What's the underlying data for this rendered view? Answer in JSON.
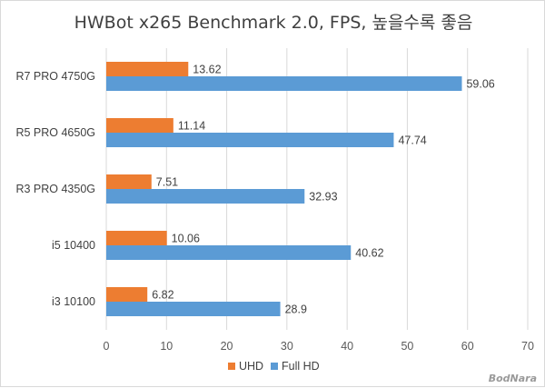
{
  "chart_data": {
    "type": "bar",
    "orientation": "horizontal",
    "title": "HWBot x265 Benchmark 2.0, FPS, 높을수록 좋음",
    "categories": [
      "R7 PRO 4750G",
      "R5 PRO 4650G",
      "R3 PRO 4350G",
      "i5 10400",
      "i3 10100"
    ],
    "series": [
      {
        "name": "UHD",
        "color": "#ed7d31",
        "values": [
          13.62,
          11.14,
          7.51,
          10.06,
          6.82
        ]
      },
      {
        "name": "Full HD",
        "color": "#5b9bd5",
        "values": [
          59.06,
          47.74,
          32.93,
          40.62,
          28.9
        ]
      }
    ],
    "xlim": [
      0,
      70
    ],
    "xticks": [
      0,
      10,
      20,
      30,
      40,
      50,
      60,
      70
    ],
    "grid": true,
    "legend_position": "bottom"
  },
  "watermark": "BodNara"
}
